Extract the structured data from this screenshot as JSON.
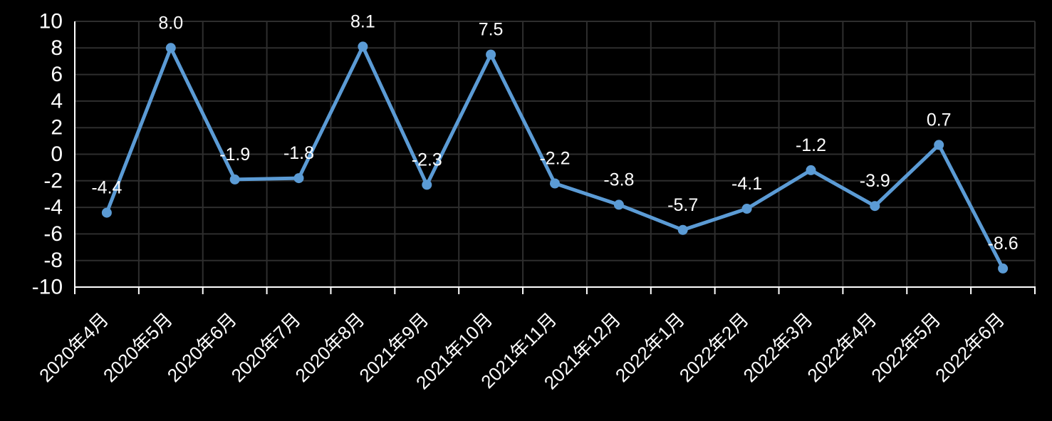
{
  "chart_data": {
    "type": "line",
    "title": "",
    "xlabel": "",
    "ylabel": "",
    "categories": [
      "2020年4月",
      "2020年5月",
      "2020年6月",
      "2020年7月",
      "2020年8月",
      "2021年9月",
      "2021年10月",
      "2021年11月",
      "2021年12月",
      "2022年1月",
      "2022年2月",
      "2022年3月",
      "2022年4月",
      "2022年5月",
      "2022年6月"
    ],
    "series": [
      {
        "name": "",
        "values": [
          -4.4,
          8.0,
          -1.9,
          -1.8,
          8.1,
          -2.3,
          7.5,
          -2.2,
          -3.8,
          -5.7,
          -4.1,
          -1.2,
          -3.9,
          0.7,
          -8.6
        ],
        "data_labels": [
          "-4.4",
          "8.0",
          "-1.9",
          "-1.8",
          "8.1",
          "-2.3",
          "7.5",
          "-2.2",
          "-3.8",
          "-5.7",
          "-4.1",
          "-1.2",
          "-3.9",
          "0.7",
          "-8.6"
        ]
      }
    ],
    "ylim": [
      -10,
      10
    ],
    "ytick_step": 2,
    "yticks": [
      "10",
      "8",
      "6",
      "4",
      "2",
      "0",
      "-2",
      "-4",
      "-6",
      "-8",
      "-10"
    ],
    "grid": true,
    "legend": "none",
    "x_label_rotation_deg": 45,
    "colors": {
      "background": "#000000",
      "line": "#5B9BD5",
      "marker": "#5B9BD5",
      "grid": "#2e2e2e",
      "axis": "#ffffff",
      "text": "#ffffff"
    }
  }
}
